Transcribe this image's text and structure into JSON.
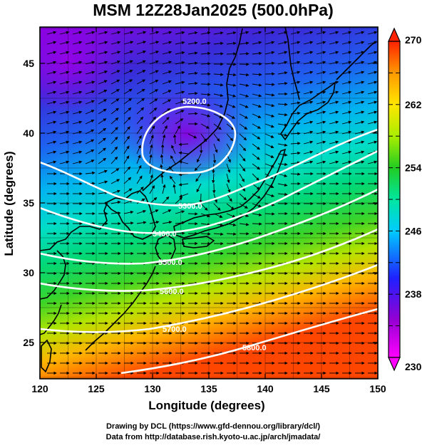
{
  "title": "MSM 12Z28Jan2025 (500.0hPa)",
  "x_axis": {
    "label": "Longitude (degrees)",
    "ticks": [
      "120",
      "125",
      "130",
      "135",
      "140",
      "145",
      "150"
    ],
    "range": [
      120,
      150
    ]
  },
  "y_axis": {
    "label": "Latitude  (degrees)",
    "ticks": [
      "25",
      "30",
      "35",
      "40",
      "45"
    ],
    "range": [
      22.4,
      47.6
    ]
  },
  "colorbar": {
    "min_label": "230",
    "max_label": "270",
    "labels": [
      "230",
      "238",
      "246",
      "254",
      "262",
      "270"
    ],
    "range": [
      230,
      270
    ],
    "colors": [
      "#ff00ff",
      "#9400d3",
      "#2020ff",
      "#00ccff",
      "#00e6a0",
      "#22cc22",
      "#aaee00",
      "#ffe600",
      "#ff9900",
      "#ff2200"
    ]
  },
  "contours": [
    {
      "label": "5200.0"
    },
    {
      "label": "5300.0"
    },
    {
      "label": "5400.0"
    },
    {
      "label": "5500.0"
    },
    {
      "label": "5600.0"
    },
    {
      "label": "5700.0"
    },
    {
      "label": "5800.0"
    }
  ],
  "credits": {
    "line1": "Drawing by DCL (https://www.gfd-dennou.org/library/dcl/)",
    "line2": "Data from http://database.rish.kyoto-u.ac.jp/arch/jmadata/"
  }
}
